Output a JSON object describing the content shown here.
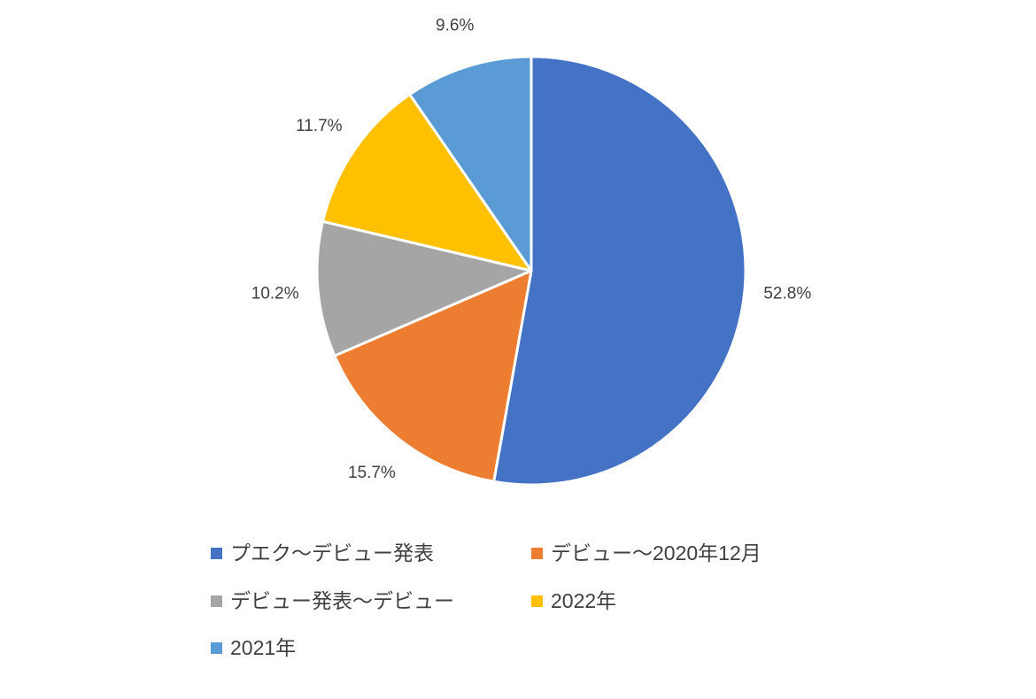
{
  "chart_data": {
    "type": "pie",
    "title": "",
    "slices": [
      {
        "label": "プエク〜デビュー発表",
        "value": 52.8,
        "display": "52.8%",
        "color": "#4472C4"
      },
      {
        "label": "デビュー〜2020年12月",
        "value": 15.7,
        "display": "15.7%",
        "color": "#ED7D31"
      },
      {
        "label": "デビュー発表〜デビュー",
        "value": 10.2,
        "display": "10.2%",
        "color": "#A5A5A5"
      },
      {
        "label": "2022年",
        "value": 11.7,
        "display": "11.7%",
        "color": "#FFC000"
      },
      {
        "label": "2021年",
        "value": 9.6,
        "display": "9.6%",
        "color": "#5B9BD5"
      }
    ],
    "start_angle_deg": 0,
    "direction": "clockwise",
    "data_labels": "outside-percent",
    "legend_position": "bottom",
    "slice_border_color": "#FFFFFF",
    "label_color": "#404040"
  }
}
